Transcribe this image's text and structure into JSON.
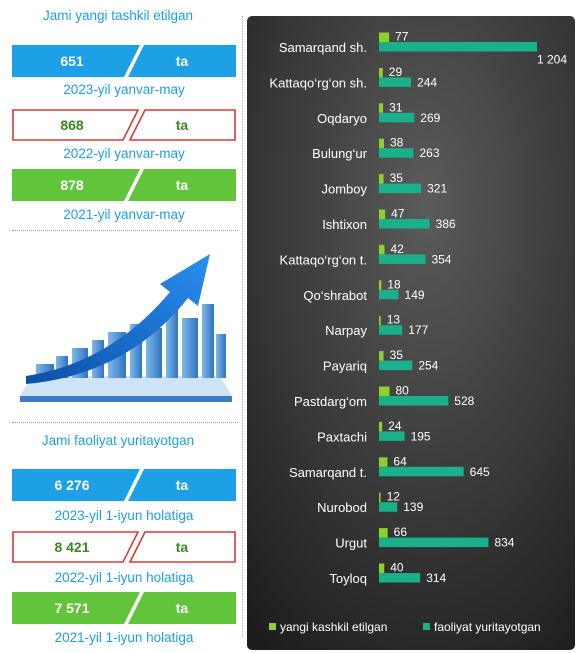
{
  "left": {
    "created_title": "Jami yangi tashkil etilgan",
    "created": [
      {
        "value": "651",
        "unit": "ta",
        "period": "2023-yil yanvar-may",
        "style": "blue"
      },
      {
        "value": "868",
        "unit": "ta",
        "period": "2022-yil yanvar-may",
        "style": "red"
      },
      {
        "value": "878",
        "unit": "ta",
        "period": "2021-yil yanvar-may",
        "style": "green"
      }
    ],
    "operating_title": "Jami faoliyat yuritayotgan",
    "operating": [
      {
        "value": "6 276",
        "unit": "ta",
        "period": "2023-yil 1-iyun holatiga",
        "style": "blue"
      },
      {
        "value": "8 421",
        "unit": "ta",
        "period": "2022-yil 1-iyun holatiga",
        "style": "red"
      },
      {
        "value": "7 571",
        "unit": "ta",
        "period": "2021-yil 1-iyun holatiga",
        "style": "green"
      }
    ]
  },
  "colors": {
    "blue": "#1ea0e6",
    "green": "#62c43a",
    "red_border": "#d63a3a",
    "teal": "#1ab089",
    "lime": "#8cd12c",
    "panel_top": "#5b5b5b",
    "panel_bottom": "#1d1d1d"
  },
  "chart_data": {
    "type": "bar",
    "orientation": "horizontal",
    "categories": [
      "Samarqand sh.",
      "Kattaqo‘rg‘on sh.",
      "Oqdaryo",
      "Bulung‘ur",
      "Jomboy",
      "Ishtixon",
      "Kattaqo‘rg‘on t.",
      "Qo‘shrabot",
      "Narpay",
      "Payariq",
      "Pastdarg‘om",
      "Paxtachi",
      "Samarqand t.",
      "Nurobod",
      "Urgut",
      "Toyloq"
    ],
    "series": [
      {
        "name": "yangi kashkil etilgan",
        "color": "#8cd12c",
        "values": [
          77,
          29,
          31,
          38,
          35,
          47,
          42,
          18,
          13,
          35,
          80,
          24,
          64,
          12,
          66,
          40
        ],
        "labels": [
          "77",
          "29",
          "31",
          "38",
          "35",
          "47",
          "42",
          "18",
          "13",
          "35",
          "80",
          "24",
          "64",
          "12",
          "66",
          "40"
        ]
      },
      {
        "name": "faoliyat yuritayotgan",
        "color": "#1ab089",
        "values": [
          1204,
          244,
          269,
          263,
          321,
          386,
          354,
          149,
          177,
          254,
          528,
          195,
          645,
          139,
          834,
          314
        ],
        "labels": [
          "1 204",
          "244",
          "269",
          "263",
          "321",
          "386",
          "354",
          "149",
          "177",
          "254",
          "528",
          "195",
          "645",
          "139",
          "834",
          "314"
        ]
      }
    ],
    "xlim": [
      0,
      1204
    ],
    "legend_position": "bottom",
    "grid": false
  }
}
